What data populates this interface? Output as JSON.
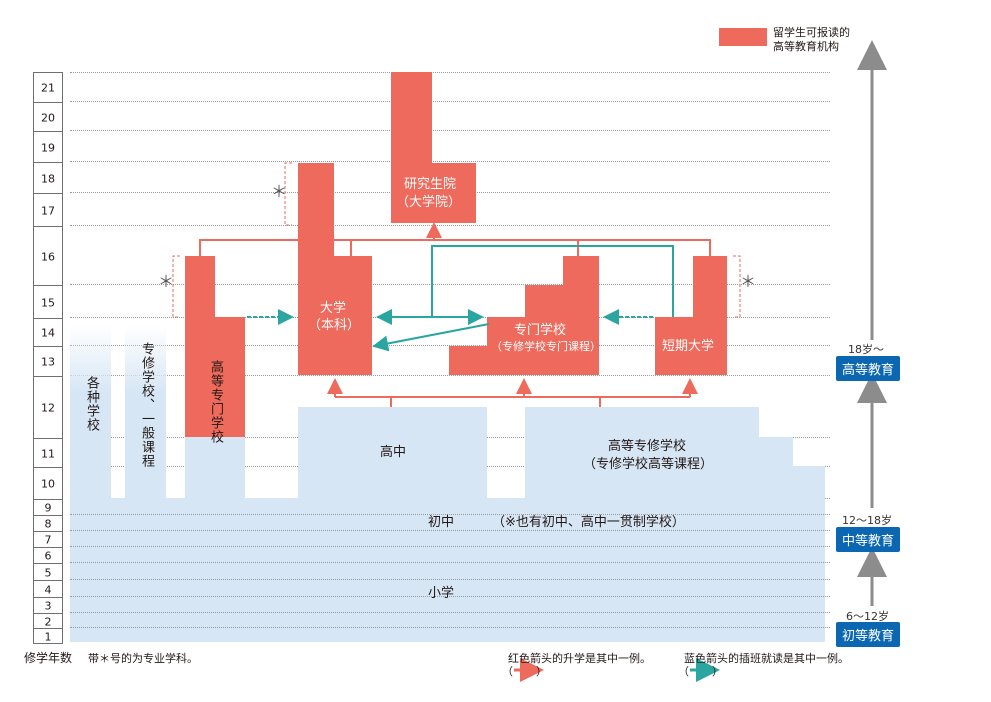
{
  "legend": {
    "label_line1": "留学生可报读的",
    "label_line2": "高等教育机构",
    "color": "#ee6a5c"
  },
  "year_axis": {
    "label": "修学年数",
    "years": [
      "21",
      "20",
      "19",
      "18",
      "17",
      "16",
      "15",
      "14",
      "13",
      "12",
      "11",
      "10",
      "9",
      "8",
      "7",
      "6",
      "5",
      "4",
      "3",
      "2",
      "1"
    ]
  },
  "institutions": {
    "graduate_school": {
      "line1": "研究生院",
      "line2": "（大学院）"
    },
    "university": {
      "line1": "大学",
      "line2": "（本科）"
    },
    "specialized_school": {
      "line1": "专门学校",
      "line2": "（专修学校专门课程）"
    },
    "junior_college": "短期大学",
    "technical_college": "高等专门学校",
    "misc_school": "各种学校",
    "special_training_school": "专修学校、一般课程",
    "high_school": "高中",
    "upper_specialized": {
      "line1": "高等专修学校",
      "line2": "（专修学校高等课程）"
    },
    "junior_high": "初中",
    "junior_high_note": "（※也有初中、高中一贯制学校）",
    "elementary": "小学"
  },
  "stages": {
    "higher": {
      "age": "18岁～",
      "label": "高等教育"
    },
    "secondary": {
      "age": "12～18岁",
      "label": "中等教育"
    },
    "primary": {
      "age": "6～12岁",
      "label": "初等教育"
    }
  },
  "footnotes": {
    "star_note": "带＊号的为专业学科。",
    "red_arrow_note": "红色箭头的升学是其中一例。",
    "blue_arrow_note": "蓝色箭头的插班就读是其中一例。",
    "paren_open": "（",
    "paren_close": "）"
  },
  "star_mark": "＊",
  "colors": {
    "red": "#ee6a5c",
    "blue_fill": "#d6e6f5",
    "teal": "#2aa5a0",
    "stage_blue": "#0b67b2"
  }
}
